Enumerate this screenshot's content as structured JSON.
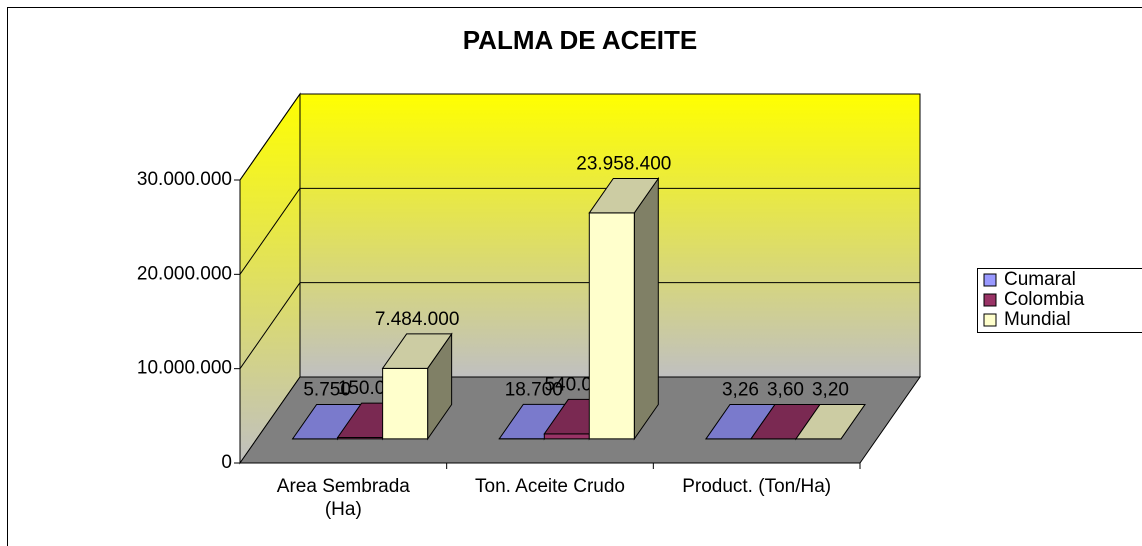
{
  "chart_data": {
    "type": "bar3d",
    "title": "PALMA DE ACEITE",
    "categories": [
      "Area Sembrada (Ha)",
      "Ton. Aceite Crudo",
      "Product. (Ton/Ha)"
    ],
    "series": [
      {
        "name": "Cumaral",
        "color": "#9999ff",
        "values": [
          5750,
          18700,
          3.26
        ],
        "value_labels": [
          "5.750",
          "18.700",
          "3,26"
        ]
      },
      {
        "name": "Colombia",
        "color": "#993366",
        "values": [
          150000,
          540000,
          3.6
        ],
        "value_labels": [
          "150.000",
          "540.000",
          "3,60"
        ]
      },
      {
        "name": "Mundial",
        "color": "#ffffcc",
        "values": [
          7484000,
          23958400,
          3.2
        ],
        "value_labels": [
          "7.484.000",
          "23.958.400",
          "3,20"
        ]
      }
    ],
    "ylim": [
      0,
      30000000
    ],
    "yticks": [
      0,
      {
        "value": 10000000,
        "label": "10.000.000"
      },
      {
        "value": 20000000,
        "label": "20.000.000"
      },
      {
        "value": 30000000,
        "label": "30.000.000"
      }
    ],
    "grid": true,
    "legend": "right"
  }
}
